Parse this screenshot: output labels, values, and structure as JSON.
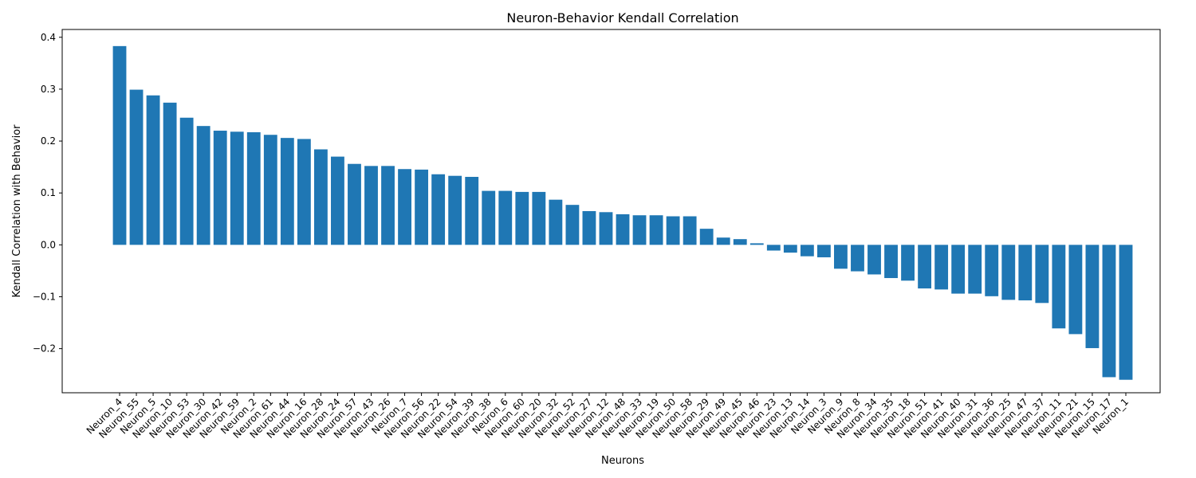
{
  "chart_data": {
    "type": "bar",
    "title": "Neuron-Behavior Kendall Correlation",
    "xlabel": "Neurons",
    "ylabel": "Kendall Correlation with Behavior",
    "ylim": [
      -0.285,
      0.415
    ],
    "yticks": [
      -0.2,
      -0.1,
      0.0,
      0.1,
      0.2,
      0.3,
      0.4
    ],
    "ytick_labels": [
      "−0.2",
      "−0.1",
      "0.0",
      "0.1",
      "0.2",
      "0.3",
      "0.4"
    ],
    "grid": false,
    "bar_color": "#1f77b4",
    "categories": [
      "Neuron_4",
      "Neuron_55",
      "Neuron_5",
      "Neuron_10",
      "Neuron_53",
      "Neuron_30",
      "Neuron_42",
      "Neuron_59",
      "Neuron_2",
      "Neuron_61",
      "Neuron_44",
      "Neuron_16",
      "Neuron_28",
      "Neuron_24",
      "Neuron_57",
      "Neuron_43",
      "Neuron_26",
      "Neuron_7",
      "Neuron_56",
      "Neuron_22",
      "Neuron_54",
      "Neuron_39",
      "Neuron_38",
      "Neuron_6",
      "Neuron_60",
      "Neuron_20",
      "Neuron_32",
      "Neuron_52",
      "Neuron_27",
      "Neuron_12",
      "Neuron_48",
      "Neuron_33",
      "Neuron_19",
      "Neuron_50",
      "Neuron_58",
      "Neuron_29",
      "Neuron_49",
      "Neuron_45",
      "Neuron_46",
      "Neuron_23",
      "Neuron_13",
      "Neuron_14",
      "Neuron_3",
      "Neuron_9",
      "Neuron_8",
      "Neuron_34",
      "Neuron_35",
      "Neuron_18",
      "Neuron_51",
      "Neuron_41",
      "Neuron_40",
      "Neuron_31",
      "Neuron_36",
      "Neuron_25",
      "Neuron_47",
      "Neuron_37",
      "Neuron_11",
      "Neuron_21",
      "Neuron_15",
      "Neuron_17",
      "Neuron_1"
    ],
    "values": [
      0.383,
      0.299,
      0.288,
      0.274,
      0.245,
      0.229,
      0.22,
      0.218,
      0.217,
      0.212,
      0.206,
      0.204,
      0.184,
      0.17,
      0.156,
      0.152,
      0.152,
      0.146,
      0.145,
      0.136,
      0.133,
      0.131,
      0.104,
      0.104,
      0.102,
      0.102,
      0.087,
      0.077,
      0.065,
      0.063,
      0.059,
      0.057,
      0.057,
      0.055,
      0.055,
      0.031,
      0.014,
      0.011,
      0.003,
      -0.011,
      -0.015,
      -0.022,
      -0.024,
      -0.046,
      -0.051,
      -0.057,
      -0.064,
      -0.069,
      -0.084,
      -0.086,
      -0.094,
      -0.094,
      -0.099,
      -0.106,
      -0.107,
      -0.112,
      -0.161,
      -0.172,
      -0.199,
      -0.255,
      -0.26
    ]
  }
}
